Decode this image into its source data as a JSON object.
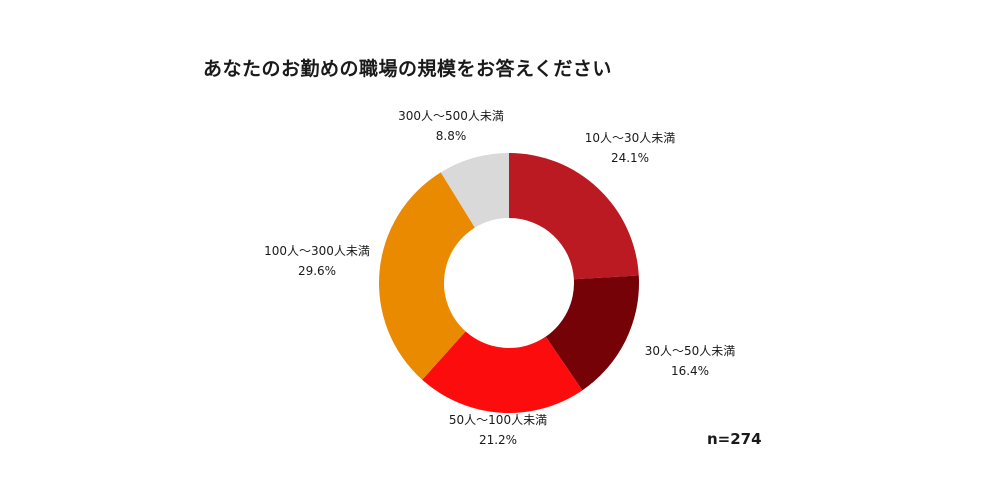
{
  "chart_data": {
    "type": "pie",
    "title": "あなたのお勤めの職場の規模をお答えください",
    "hole": true,
    "start": "top, clockwise",
    "categories": [
      "10人～30人未満",
      "30人～50人未満",
      "50人～100人未満",
      "100人～300人未満",
      "300人～500人未満"
    ],
    "values": [
      24.1,
      16.4,
      21.2,
      29.6,
      8.8
    ],
    "value_labels": [
      "24.1%",
      "16.4%",
      "21.2%",
      "29.6%",
      "8.8%"
    ],
    "colors": [
      "#bb1a22",
      "#750207",
      "#fd0c0e",
      "#ea8a01",
      "#d9d9d9"
    ],
    "sample_size": "n=274"
  }
}
